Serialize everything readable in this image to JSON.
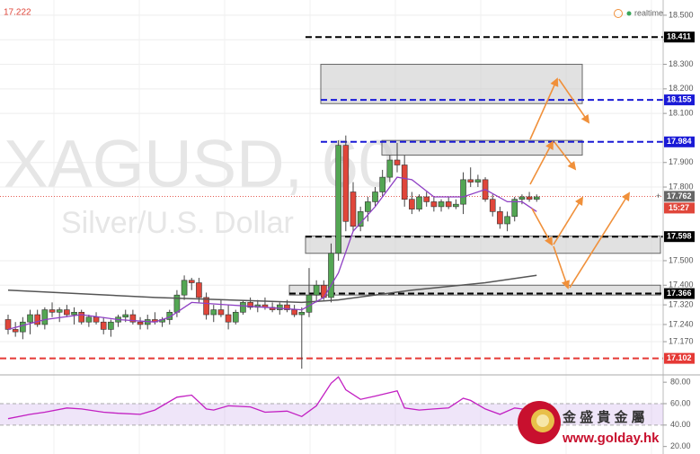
{
  "chart_data": {
    "type": "candlestick",
    "title": "XAGUSD, 60",
    "subtitle": "Silver/U.S. Dollar",
    "top_left_value": 17.222,
    "status": "realtime",
    "up_color": "#53a653",
    "down_color": "#e0463a",
    "ylim": [
      17.042,
      18.562
    ],
    "yticks": [
      {
        "value": 18.5,
        "label": "18.500"
      },
      {
        "value": 18.4,
        "label": "18.400"
      },
      {
        "value": 18.3,
        "label": "18.300"
      },
      {
        "value": 18.2,
        "label": "18.200"
      },
      {
        "value": 18.1,
        "label": "18.100"
      },
      {
        "value": 17.9,
        "label": "17.900"
      },
      {
        "value": 17.8,
        "label": "17.800"
      },
      {
        "value": 17.5,
        "label": "17.500"
      },
      {
        "value": 17.4,
        "label": "17.400"
      },
      {
        "value": 17.32,
        "label": "17.320"
      },
      {
        "value": 17.24,
        "label": "17.240"
      },
      {
        "value": 17.17,
        "label": "17.170"
      }
    ],
    "grid": true,
    "candles": [
      [
        17.26,
        17.28,
        17.2,
        17.22
      ],
      [
        17.22,
        17.25,
        17.19,
        17.21
      ],
      [
        17.21,
        17.27,
        17.18,
        17.25
      ],
      [
        17.25,
        17.3,
        17.2,
        17.28
      ],
      [
        17.28,
        17.3,
        17.23,
        17.24
      ],
      [
        17.24,
        17.31,
        17.22,
        17.3
      ],
      [
        17.3,
        17.33,
        17.27,
        17.29
      ],
      [
        17.29,
        17.31,
        17.25,
        17.3
      ],
      [
        17.3,
        17.32,
        17.27,
        17.28
      ],
      [
        17.28,
        17.31,
        17.24,
        17.29
      ],
      [
        17.29,
        17.3,
        17.24,
        17.25
      ],
      [
        17.25,
        17.28,
        17.23,
        17.27
      ],
      [
        17.27,
        17.29,
        17.24,
        17.25
      ],
      [
        17.25,
        17.27,
        17.2,
        17.22
      ],
      [
        17.22,
        17.26,
        17.19,
        17.25
      ],
      [
        17.25,
        17.28,
        17.23,
        17.27
      ],
      [
        17.27,
        17.3,
        17.25,
        17.28
      ],
      [
        17.28,
        17.3,
        17.24,
        17.25
      ],
      [
        17.25,
        17.27,
        17.22,
        17.24
      ],
      [
        17.24,
        17.28,
        17.22,
        17.26
      ],
      [
        17.26,
        17.29,
        17.24,
        17.25
      ],
      [
        17.25,
        17.27,
        17.23,
        17.26
      ],
      [
        17.26,
        17.3,
        17.24,
        17.29
      ],
      [
        17.29,
        17.38,
        17.27,
        17.36
      ],
      [
        17.36,
        17.44,
        17.34,
        17.42
      ],
      [
        17.42,
        17.43,
        17.38,
        17.41
      ],
      [
        17.41,
        17.43,
        17.33,
        17.35
      ],
      [
        17.35,
        17.37,
        17.26,
        17.28
      ],
      [
        17.28,
        17.32,
        17.25,
        17.3
      ],
      [
        17.3,
        17.34,
        17.27,
        17.28
      ],
      [
        17.28,
        17.32,
        17.22,
        17.25
      ],
      [
        17.25,
        17.3,
        17.24,
        17.29
      ],
      [
        17.29,
        17.34,
        17.28,
        17.33
      ],
      [
        17.33,
        17.35,
        17.3,
        17.31
      ],
      [
        17.31,
        17.34,
        17.29,
        17.32
      ],
      [
        17.32,
        17.35,
        17.3,
        17.31
      ],
      [
        17.31,
        17.33,
        17.29,
        17.3
      ],
      [
        17.3,
        17.33,
        17.28,
        17.32
      ],
      [
        17.32,
        17.34,
        17.29,
        17.3
      ],
      [
        17.3,
        17.32,
        17.27,
        17.28
      ],
      [
        17.28,
        17.31,
        17.06,
        17.29
      ],
      [
        17.29,
        17.47,
        17.27,
        17.36
      ],
      [
        17.36,
        17.42,
        17.33,
        17.4
      ],
      [
        17.4,
        17.42,
        17.34,
        17.35
      ],
      [
        17.35,
        17.57,
        17.33,
        17.53
      ],
      [
        17.53,
        17.99,
        17.5,
        17.97
      ],
      [
        17.97,
        18.01,
        17.62,
        17.66
      ],
      [
        17.78,
        17.82,
        17.62,
        17.64
      ],
      [
        17.64,
        17.72,
        17.62,
        17.7
      ],
      [
        17.7,
        17.76,
        17.66,
        17.74
      ],
      [
        17.74,
        17.8,
        17.72,
        17.78
      ],
      [
        17.78,
        17.87,
        17.76,
        17.84
      ],
      [
        17.84,
        17.93,
        17.82,
        17.91
      ],
      [
        17.91,
        17.98,
        17.86,
        17.89
      ],
      [
        17.89,
        17.93,
        17.72,
        17.75
      ],
      [
        17.75,
        17.78,
        17.69,
        17.71
      ],
      [
        17.71,
        17.77,
        17.7,
        17.76
      ],
      [
        17.76,
        17.78,
        17.72,
        17.74
      ],
      [
        17.74,
        17.76,
        17.7,
        17.72
      ],
      [
        17.72,
        17.75,
        17.7,
        17.74
      ],
      [
        17.74,
        17.76,
        17.71,
        17.72
      ],
      [
        17.72,
        17.75,
        17.71,
        17.73
      ],
      [
        17.73,
        17.86,
        17.69,
        17.83
      ],
      [
        17.83,
        17.88,
        17.8,
        17.82
      ],
      [
        17.82,
        17.85,
        17.8,
        17.83
      ],
      [
        17.83,
        17.84,
        17.74,
        17.75
      ],
      [
        17.75,
        17.77,
        17.68,
        17.7
      ],
      [
        17.7,
        17.72,
        17.63,
        17.65
      ],
      [
        17.65,
        17.7,
        17.62,
        17.68
      ],
      [
        17.68,
        17.76,
        17.66,
        17.75
      ],
      [
        17.75,
        17.77,
        17.73,
        17.76
      ],
      [
        17.76,
        17.78,
        17.74,
        17.75
      ],
      [
        17.75,
        17.77,
        17.74,
        17.76
      ]
    ],
    "ma_fast": {
      "color": "#8e3fc4",
      "x": [
        0,
        5,
        10,
        15,
        20,
        22,
        25,
        30,
        35,
        40,
        43,
        45,
        47,
        50,
        53,
        55,
        58,
        62,
        65,
        68,
        70,
        72
      ],
      "values": [
        17.22,
        17.26,
        17.28,
        17.26,
        17.25,
        17.27,
        17.33,
        17.32,
        17.31,
        17.3,
        17.35,
        17.45,
        17.62,
        17.72,
        17.84,
        17.83,
        17.76,
        17.76,
        17.79,
        17.74,
        17.74,
        17.7
      ]
    },
    "ma_slow": {
      "color": "#555555",
      "x": [
        0,
        20,
        40,
        45,
        55,
        65,
        72
      ],
      "values": [
        17.38,
        17.35,
        17.33,
        17.34,
        17.38,
        17.41,
        17.44
      ]
    },
    "zones": [
      {
        "from": 18.3,
        "to": 18.14
      },
      {
        "from": 17.99,
        "to": 17.93
      },
      {
        "from": 17.6,
        "to": 17.53
      },
      {
        "from": 17.4,
        "to": 17.36
      }
    ],
    "levels": [
      {
        "value": 18.411,
        "color": "#000000"
      },
      {
        "value": 18.155,
        "color": "#1a1ad6"
      },
      {
        "value": 17.984,
        "color": "#1a1ad6"
      },
      {
        "value": 17.598,
        "color": "#000000"
      },
      {
        "value": 17.366,
        "color": "#000000"
      },
      {
        "value": 17.102,
        "color": "#e53935"
      }
    ],
    "last_price": 17.762,
    "countdown": "15:27",
    "rsi": {
      "color": "#c21fc2",
      "ylim": [
        13,
        86
      ],
      "yticks": [
        {
          "value": 80,
          "label": "80.00"
        },
        {
          "value": 60,
          "label": "60.00"
        },
        {
          "value": 40,
          "label": "40.00"
        },
        {
          "value": 20,
          "label": "20.00"
        }
      ],
      "band": [
        40,
        60
      ],
      "x": [
        0,
        3,
        5,
        8,
        10,
        13,
        15,
        18,
        20,
        23,
        25,
        27,
        28,
        30,
        33,
        35,
        38,
        40,
        42,
        44,
        45,
        46,
        48,
        50,
        53,
        54,
        56,
        58,
        60,
        62,
        63,
        65,
        67,
        69,
        70,
        72
      ],
      "values": [
        46,
        50,
        52,
        56,
        55,
        52,
        51,
        50,
        54,
        66,
        68,
        55,
        54,
        58,
        57,
        52,
        53,
        48,
        58,
        79,
        85,
        73,
        64,
        67,
        72,
        56,
        54,
        55,
        56,
        65,
        63,
        55,
        50,
        56,
        55,
        53
      ]
    },
    "logo": {
      "name": "金 盛 貴 金 屬",
      "url": "www.golday.hk"
    }
  }
}
